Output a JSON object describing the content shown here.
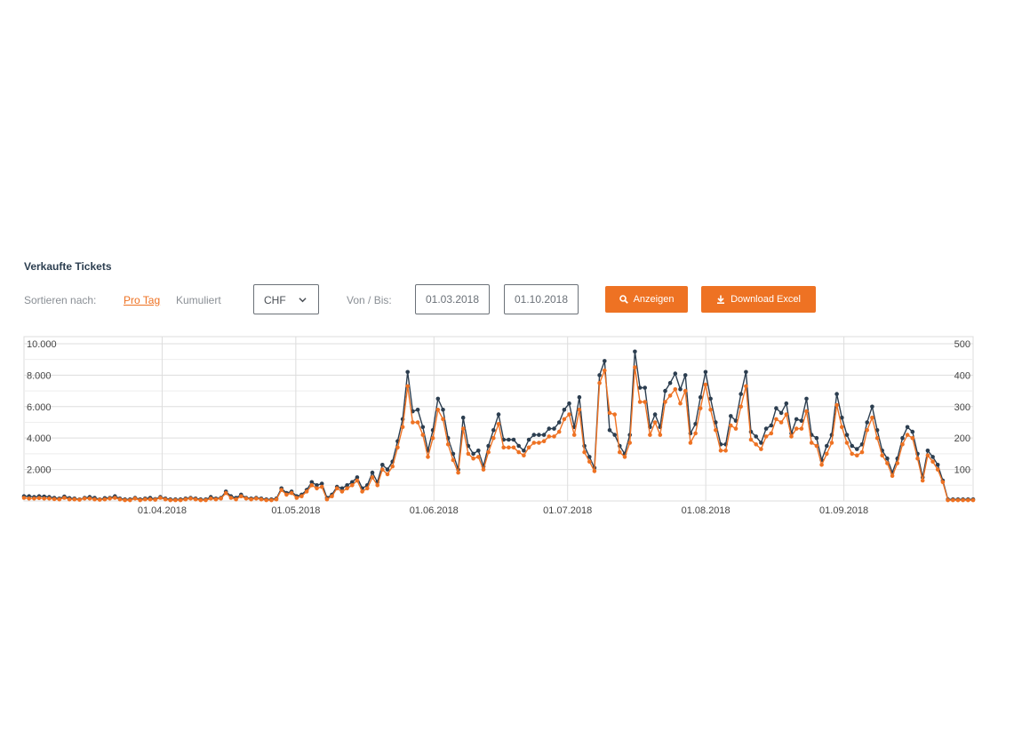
{
  "header": {
    "title": "Verkaufte Tickets"
  },
  "controls": {
    "sort_label": "Sortieren nach:",
    "sort_per_day": "Pro Tag",
    "sort_cumulative": "Kumuliert",
    "currency": "CHF",
    "range_label": "Von / Bis:",
    "date_from": "01.03.2018",
    "date_to": "01.10.2018",
    "show_button": "Anzeigen",
    "download_button": "Download Excel"
  },
  "colors": {
    "accent": "#ee7223",
    "dark_series": "#2c3e50",
    "grid": "#dddddd"
  },
  "icons": {
    "show_button": "search-icon",
    "download_button": "download-icon",
    "select": "chevron-down-icon"
  },
  "chart_data": {
    "type": "line",
    "title": "",
    "x_tick_labels": [
      "01.04.2018",
      "01.05.2018",
      "01.06.2018",
      "01.07.2018",
      "01.08.2018",
      "01.09.2018"
    ],
    "x_range": [
      "2018-03-01",
      "2018-09-30"
    ],
    "y_left": {
      "ticks": [
        "10.000",
        "8.000",
        "6.000",
        "4.000",
        "2.000"
      ],
      "range": [
        0,
        10000
      ]
    },
    "y_right": {
      "ticks": [
        "500",
        "400",
        "300",
        "200",
        "100"
      ],
      "range": [
        0,
        500
      ]
    },
    "grid": true,
    "legend": "none",
    "series": [
      {
        "color": "#2c3e50",
        "axis": "left",
        "values": [
          300,
          300,
          250,
          300,
          280,
          250,
          200,
          150,
          280,
          180,
          150,
          100,
          200,
          250,
          200,
          100,
          180,
          200,
          300,
          150,
          100,
          100,
          200,
          100,
          150,
          200,
          120,
          250,
          150,
          100,
          100,
          100,
          150,
          200,
          150,
          100,
          100,
          250,
          150,
          200,
          600,
          300,
          200,
          400,
          200,
          150,
          200,
          150,
          100,
          100,
          150,
          800,
          500,
          600,
          300,
          400,
          700,
          1200,
          1000,
          1100,
          200,
          400,
          900,
          800,
          1000,
          1200,
          1500,
          800,
          1000,
          1800,
          1200,
          2300,
          2000,
          2500,
          3800,
          5200,
          8200,
          5700,
          5800,
          4700,
          3200,
          4500,
          6500,
          5800,
          4000,
          3000,
          2000,
          5300,
          3500,
          3000,
          3200,
          2200,
          3500,
          4500,
          5500,
          3900,
          3900,
          3900,
          3500,
          3200,
          3900,
          4200,
          4200,
          4200,
          4600,
          4600,
          5000,
          5800,
          6200,
          4700,
          6600,
          3500,
          2800,
          2100,
          8000,
          8900,
          4500,
          4200,
          3500,
          3000,
          4200,
          9500,
          7200,
          7200,
          4700,
          5500,
          4700,
          7000,
          7500,
          8100,
          7100,
          8000,
          4300,
          4900,
          6600,
          8200,
          6500,
          5000,
          3600,
          3600,
          5400,
          5100,
          6800,
          8200,
          4400,
          4100,
          3700,
          4600,
          4800,
          5900,
          5600,
          6200,
          4300,
          5200,
          5100,
          6500,
          4200,
          4000,
          2600,
          3500,
          4200,
          6800,
          5300,
          4200,
          3500,
          3300,
          3600,
          5000,
          6000,
          4500,
          3200,
          2700,
          1800,
          2700,
          4000,
          4700,
          4400,
          3000,
          1500,
          3200,
          2800,
          2300,
          1300,
          100,
          100,
          100,
          100,
          100,
          100
        ]
      },
      {
        "color": "#ee7223",
        "axis": "left",
        "values": [
          200,
          150,
          150,
          180,
          150,
          150,
          120,
          100,
          200,
          100,
          100,
          80,
          150,
          150,
          100,
          80,
          100,
          150,
          200,
          100,
          50,
          50,
          150,
          50,
          100,
          100,
          80,
          200,
          100,
          50,
          50,
          50,
          100,
          150,
          100,
          50,
          50,
          150,
          100,
          150,
          500,
          200,
          100,
          300,
          150,
          100,
          150,
          100,
          50,
          50,
          100,
          700,
          400,
          500,
          200,
          300,
          600,
          1000,
          800,
          900,
          100,
          300,
          800,
          600,
          800,
          1000,
          1300,
          600,
          800,
          1500,
          1000,
          2000,
          1700,
          2200,
          3400,
          4700,
          7300,
          5000,
          5000,
          4200,
          2800,
          4000,
          5800,
          5200,
          3600,
          2600,
          1800,
          4600,
          3000,
          2700,
          2800,
          2000,
          3100,
          4000,
          4900,
          3400,
          3400,
          3400,
          3100,
          2900,
          3400,
          3700,
          3700,
          3800,
          4100,
          4100,
          4400,
          5200,
          5500,
          4200,
          5800,
          3100,
          2500,
          1900,
          7500,
          8300,
          5600,
          5500,
          3100,
          2800,
          3700,
          8500,
          6300,
          6300,
          4200,
          5000,
          4200,
          6300,
          6700,
          7100,
          6200,
          7000,
          3700,
          4300,
          5900,
          7400,
          5800,
          4500,
          3200,
          3200,
          4800,
          4600,
          6000,
          7300,
          3900,
          3600,
          3300,
          4100,
          4300,
          5200,
          5000,
          5500,
          4100,
          4600,
          4600,
          5700,
          3700,
          3500,
          2300,
          3000,
          3700,
          6100,
          4700,
          3700,
          3000,
          2900,
          3100,
          4500,
          5300,
          4000,
          2900,
          2400,
          1600,
          2400,
          3600,
          4200,
          4000,
          2700,
          1300,
          2900,
          2500,
          2000,
          1200,
          50,
          50,
          50,
          50,
          50,
          50
        ]
      }
    ]
  }
}
